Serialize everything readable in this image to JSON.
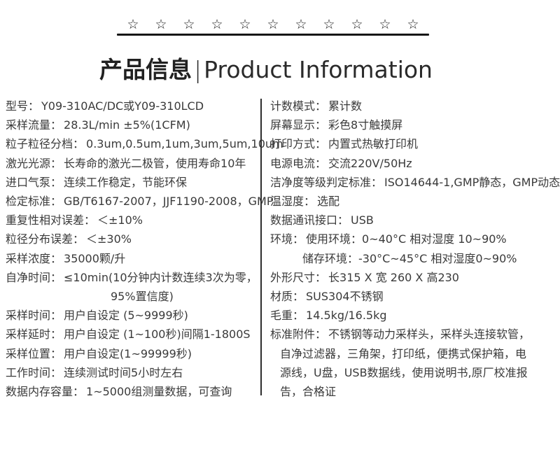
{
  "header": {
    "stars": {
      "glyph": "☆",
      "count": 11
    },
    "title_cn": "产品信息",
    "separator": "|",
    "title_en": "Product Information"
  },
  "colors": {
    "text": "#3a3a3a",
    "rule": "#161616"
  },
  "columns": {
    "left": [
      {
        "label": "型号：",
        "value": "Y09-310AC/DC或Y09-310LCD"
      },
      {
        "label": "采样流量：",
        "value": "28.3L/min ±5%(1CFM)"
      },
      {
        "label": "粒子粒径分档：",
        "value": "0.3um,0.5um,1um,3um,5um,10um"
      },
      {
        "label": "激光光源：",
        "value": "长寿命的激光二极管，使用寿命10年"
      },
      {
        "label": "进口气泵：",
        "value": "连续工作稳定，节能环保"
      },
      {
        "label": "检定标准：",
        "value": "GB/T6167-2007，JJF1190-2008，GMP"
      },
      {
        "label": "重复性相对误差：",
        "value": "＜±10%"
      },
      {
        "label": "粒径分布误差：",
        "value": "＜±30%"
      },
      {
        "label": "采样浓度：",
        "value": "35000颗/升"
      },
      {
        "label": "自净时间：",
        "value": "≤10min(10分钟内计数连续3次为零，"
      },
      {
        "text": "95%置信度)",
        "indent": "large"
      },
      {
        "label": "采样时间：",
        "value": "用户自设定 (5~9999秒)"
      },
      {
        "label": "采样延时：",
        "value": "用户自设定 (1~100秒)间隔1-1800S"
      },
      {
        "label": "采样位置：",
        "value": "用户自设定(1~99999秒)"
      },
      {
        "label": "工作时间：",
        "value": "连续测试时间5小时左右"
      },
      {
        "label": "数据内存容量：",
        "value": "1~5000组测量数据，可查询"
      }
    ],
    "right": [
      {
        "label": "计数模式：",
        "value": "累计数"
      },
      {
        "label": "屏幕显示：",
        "value": "彩色8寸触摸屏"
      },
      {
        "label": "打印方式：",
        "value": "内置式热敏打印机"
      },
      {
        "label": "电源电流：",
        "value": "交流220V/50Hz"
      },
      {
        "label": "洁净度等级判定标准：",
        "value": "ISO14644-1,GMP静态，GMP动态"
      },
      {
        "label": "温湿度：",
        "value": "选配"
      },
      {
        "label": "数据通讯接口：",
        "value": "USB"
      },
      {
        "label": "环境：",
        "value": "使用环境：0~40°C 相对湿度 10~90%"
      },
      {
        "text": "储存环境：-30°C~45°C 相对湿度0~90%",
        "indent": "medium"
      },
      {
        "label": "外形尺寸：",
        "value": "长315 X 宽 260 X 高230"
      },
      {
        "label": "材质：",
        "value": "SUS304不锈钢"
      },
      {
        "label": "毛重：",
        "value": "14.5kg/16.5kg"
      },
      {
        "label": "标准附件：",
        "value": "不锈钢等动力采样头，采样头连接软管，"
      },
      {
        "text": "自净过滤器，三角架，打印纸，便携式保护箱，电",
        "indent": "small"
      },
      {
        "text": "源线，U盘，USB数据线，使用说明书,原厂校准报",
        "indent": "small"
      },
      {
        "text": "告，合格证",
        "indent": "small"
      }
    ]
  }
}
